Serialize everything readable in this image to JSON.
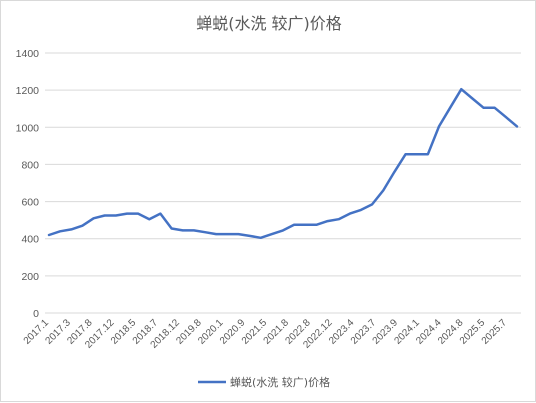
{
  "chart_data": {
    "type": "line",
    "title": "蝉蜕(水洗 较广)价格",
    "xlabel": "",
    "ylabel": "",
    "ylim": [
      0,
      1400
    ],
    "yticks": [
      0,
      200,
      400,
      600,
      800,
      1000,
      1200,
      1400
    ],
    "grid": true,
    "legend_position": "bottom",
    "x_tick_labels": [
      "2017.1",
      "2017.3",
      "2017.8",
      "2017.12",
      "2018.5",
      "2018.7",
      "2018.12",
      "2019.8",
      "2020.1",
      "2020.9",
      "2021.5",
      "2021.8",
      "2022.8",
      "2022.12",
      "2023.4",
      "2023.7",
      "2023.9",
      "2024.1",
      "2024.4",
      "2024.8",
      "2025.5",
      "2025.7"
    ],
    "series": [
      {
        "name": "蝉蜕(水洗 较广)价格",
        "color": "#4472c4",
        "values": [
          420,
          440,
          450,
          470,
          510,
          525,
          525,
          535,
          535,
          505,
          535,
          455,
          445,
          445,
          435,
          425,
          425,
          425,
          415,
          405,
          425,
          445,
          475,
          475,
          475,
          495,
          505,
          535,
          555,
          585,
          660,
          760,
          855,
          855,
          855,
          1005,
          1105,
          1205,
          1155,
          1105,
          1105,
          1055,
          1005
        ]
      }
    ]
  }
}
